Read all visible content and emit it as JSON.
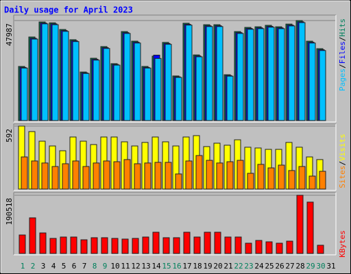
{
  "chart_data": [
    {
      "type": "bar",
      "title": "Daily usage for April 2023",
      "legend_separator": "/",
      "ylim": [
        0,
        47987
      ],
      "yticks": [
        47987
      ],
      "series": [
        {
          "name": "Hits",
          "color": "#00805c",
          "values": [
            25970,
            40100,
            47300,
            46900,
            43700,
            38800,
            23300,
            29900,
            35500,
            27300,
            42700,
            38100,
            25970,
            30900,
            37500,
            21400,
            46700,
            31500,
            46000,
            46000,
            22000,
            42700,
            44700,
            45000,
            45700,
            45000,
            46300,
            47987,
            38100,
            34500,
            null
          ]
        },
        {
          "name": "Files",
          "color": "#0000ff",
          "values": [
            25500,
            39500,
            46800,
            46400,
            43200,
            38300,
            22900,
            29400,
            35000,
            26900,
            42200,
            37600,
            25500,
            31400,
            37000,
            21000,
            46200,
            31000,
            45500,
            45500,
            21600,
            42200,
            44200,
            44500,
            45200,
            44500,
            45800,
            47400,
            37600,
            34000,
            null
          ]
        },
        {
          "name": "Pages",
          "color": "#00c0ff",
          "values": [
            25200,
            39100,
            46400,
            46000,
            42800,
            37900,
            22600,
            29000,
            34600,
            26600,
            41800,
            37200,
            25200,
            29800,
            36600,
            20700,
            45800,
            30600,
            45100,
            45100,
            21300,
            41800,
            43800,
            44100,
            44800,
            44100,
            45400,
            47000,
            37200,
            33600,
            null
          ]
        }
      ]
    },
    {
      "type": "bar",
      "legend_separator": "/",
      "ylim": [
        0,
        592
      ],
      "yticks": [
        592
      ],
      "series": [
        {
          "name": "Visits",
          "color": "#ffff00",
          "values": [
            592,
            540,
            450,
            405,
            360,
            489,
            450,
            418,
            489,
            489,
            444,
            405,
            438,
            489,
            444,
            405,
            489,
            502,
            399,
            431,
            412,
            463,
            393,
            386,
            373,
            373,
            438,
            393,
            302,
            277,
            null
          ]
        },
        {
          "name": "Sites",
          "color": "#ff8000",
          "values": [
            302,
            264,
            245,
            212,
            238,
            264,
            212,
            245,
            264,
            257,
            277,
            238,
            245,
            251,
            251,
            142,
            264,
            315,
            270,
            245,
            257,
            270,
            148,
            232,
            199,
            225,
            174,
            212,
            122,
            167,
            null
          ]
        }
      ]
    },
    {
      "type": "bar",
      "ylim": [
        0,
        190518
      ],
      "yticks": [
        190518
      ],
      "categories": [
        "1",
        "2",
        "3",
        "4",
        "5",
        "6",
        "7",
        "8",
        "9",
        "10",
        "11",
        "12",
        "13",
        "14",
        "15",
        "16",
        "17",
        "18",
        "19",
        "20",
        "21",
        "22",
        "23",
        "24",
        "25",
        "26",
        "27",
        "28",
        "29",
        "30",
        "31"
      ],
      "category_colors": [
        "#00805c",
        "#00805c",
        "#000000",
        "#000000",
        "#000000",
        "#000000",
        "#000000",
        "#00805c",
        "#00805c",
        "#000000",
        "#000000",
        "#000000",
        "#000000",
        "#000000",
        "#00805c",
        "#00805c",
        "#000000",
        "#000000",
        "#000000",
        "#000000",
        "#000000",
        "#00805c",
        "#00805c",
        "#000000",
        "#000000",
        "#000000",
        "#000000",
        "#000000",
        "#00805c",
        "#00805c",
        "#000000"
      ],
      "series": [
        {
          "name": "KBytes",
          "color": "#ff0000",
          "values": [
            60500,
            116600,
            67200,
            49300,
            53800,
            53800,
            44800,
            51600,
            51600,
            49300,
            47100,
            49300,
            53800,
            69500,
            51600,
            51600,
            69500,
            53800,
            69500,
            69500,
            53800,
            53800,
            33600,
            42600,
            38100,
            33600,
            40300,
            190518,
            168100,
            26900,
            null
          ]
        }
      ]
    }
  ]
}
